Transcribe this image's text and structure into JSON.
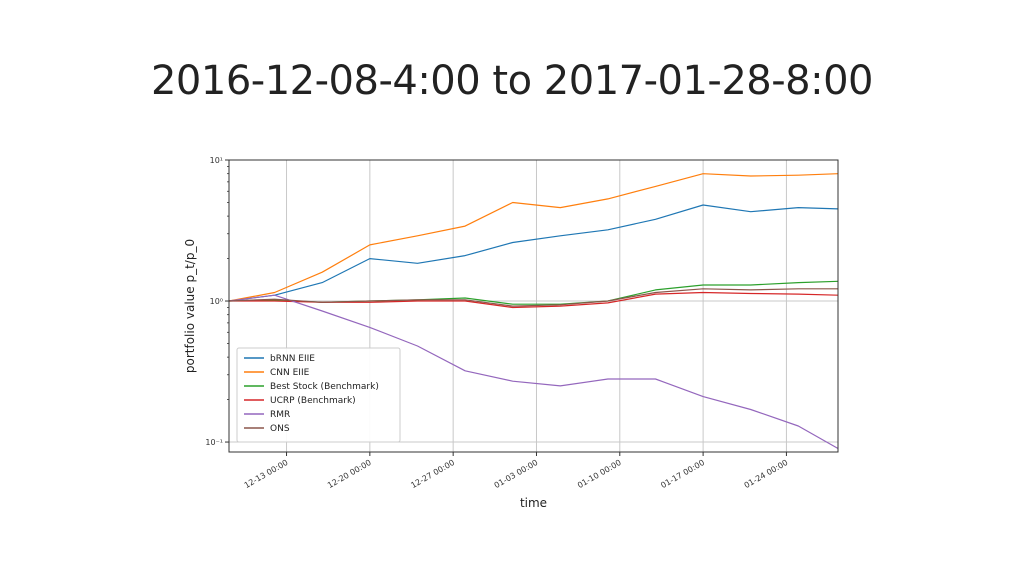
{
  "slide": {
    "title": "2016-12-08-4:00 to 2017-01-28-8:00"
  },
  "chart_data": {
    "type": "line",
    "title": "",
    "xlabel": "time",
    "ylabel": "portfolio value p_t/p_0",
    "yscale": "log",
    "ylim": [
      0.085,
      10
    ],
    "xlim": [
      "2016-12-08 04:00",
      "2017-01-28 08:00"
    ],
    "grid": true,
    "legend_position": "lower left",
    "y_ticks": [
      {
        "value": 0.1,
        "label": "10⁻¹"
      },
      {
        "value": 1,
        "label": "10⁰"
      },
      {
        "value": 10,
        "label": "10¹"
      }
    ],
    "x_ticks": [
      {
        "value": "2016-12-13 00:00",
        "label": "12-13 00:00"
      },
      {
        "value": "2016-12-20 00:00",
        "label": "12-20 00:00"
      },
      {
        "value": "2016-12-27 00:00",
        "label": "12-27 00:00"
      },
      {
        "value": "2017-01-03 00:00",
        "label": "01-03 00:00"
      },
      {
        "value": "2017-01-10 00:00",
        "label": "01-10 00:00"
      },
      {
        "value": "2017-01-17 00:00",
        "label": "01-17 00:00"
      },
      {
        "value": "2017-01-24 00:00",
        "label": "01-24 00:00"
      }
    ],
    "series": [
      {
        "name": "bRNN EIIE",
        "color": "#1f77b4",
        "x": [
          "2016-12-08 04:00",
          "2016-12-12 00:00",
          "2016-12-16 00:00",
          "2016-12-20 00:00",
          "2016-12-24 00:00",
          "2016-12-28 00:00",
          "2017-01-01 00:00",
          "2017-01-05 00:00",
          "2017-01-09 00:00",
          "2017-01-13 00:00",
          "2017-01-17 00:00",
          "2017-01-21 00:00",
          "2017-01-25 00:00",
          "2017-01-28 08:00"
        ],
        "values": [
          1.0,
          1.1,
          1.35,
          2.0,
          1.85,
          2.1,
          2.6,
          2.9,
          3.2,
          3.8,
          4.8,
          4.3,
          4.6,
          4.5
        ]
      },
      {
        "name": "CNN EIIE",
        "color": "#ff7f0e",
        "x": [
          "2016-12-08 04:00",
          "2016-12-12 00:00",
          "2016-12-16 00:00",
          "2016-12-20 00:00",
          "2016-12-24 00:00",
          "2016-12-28 00:00",
          "2017-01-01 00:00",
          "2017-01-05 00:00",
          "2017-01-09 00:00",
          "2017-01-13 00:00",
          "2017-01-17 00:00",
          "2017-01-21 00:00",
          "2017-01-25 00:00",
          "2017-01-28 08:00"
        ],
        "values": [
          1.0,
          1.15,
          1.6,
          2.5,
          2.9,
          3.4,
          5.0,
          4.6,
          5.3,
          6.5,
          8.0,
          7.7,
          7.8,
          8.0
        ]
      },
      {
        "name": "Best Stock (Benchmark)",
        "color": "#2ca02c",
        "x": [
          "2016-12-08 04:00",
          "2016-12-12 00:00",
          "2016-12-16 00:00",
          "2016-12-20 00:00",
          "2016-12-24 00:00",
          "2016-12-28 00:00",
          "2017-01-01 00:00",
          "2017-01-05 00:00",
          "2017-01-09 00:00",
          "2017-01-13 00:00",
          "2017-01-17 00:00",
          "2017-01-21 00:00",
          "2017-01-25 00:00",
          "2017-01-28 08:00"
        ],
        "values": [
          1.0,
          1.02,
          0.98,
          1.0,
          1.02,
          1.05,
          0.95,
          0.95,
          1.0,
          1.2,
          1.3,
          1.3,
          1.35,
          1.38
        ]
      },
      {
        "name": "UCRP (Benchmark)",
        "color": "#d62728",
        "x": [
          "2016-12-08 04:00",
          "2016-12-12 00:00",
          "2016-12-16 00:00",
          "2016-12-20 00:00",
          "2016-12-24 00:00",
          "2016-12-28 00:00",
          "2017-01-01 00:00",
          "2017-01-05 00:00",
          "2017-01-09 00:00",
          "2017-01-13 00:00",
          "2017-01-17 00:00",
          "2017-01-21 00:00",
          "2017-01-25 00:00",
          "2017-01-28 08:00"
        ],
        "values": [
          1.0,
          1.0,
          0.98,
          0.98,
          1.0,
          1.0,
          0.9,
          0.92,
          0.97,
          1.12,
          1.15,
          1.13,
          1.12,
          1.1
        ]
      },
      {
        "name": "RMR",
        "color": "#9467bd",
        "x": [
          "2016-12-08 04:00",
          "2016-12-12 00:00",
          "2016-12-16 00:00",
          "2016-12-20 00:00",
          "2016-12-24 00:00",
          "2016-12-28 00:00",
          "2017-01-01 00:00",
          "2017-01-05 00:00",
          "2017-01-09 00:00",
          "2017-01-13 00:00",
          "2017-01-17 00:00",
          "2017-01-21 00:00",
          "2017-01-25 00:00",
          "2017-01-28 08:00"
        ],
        "values": [
          1.0,
          1.1,
          0.85,
          0.65,
          0.48,
          0.32,
          0.27,
          0.25,
          0.28,
          0.28,
          0.21,
          0.17,
          0.13,
          0.09
        ]
      },
      {
        "name": "ONS",
        "color": "#8c564b",
        "x": [
          "2016-12-08 04:00",
          "2016-12-12 00:00",
          "2016-12-16 00:00",
          "2016-12-20 00:00",
          "2016-12-24 00:00",
          "2016-12-28 00:00",
          "2017-01-01 00:00",
          "2017-01-05 00:00",
          "2017-01-09 00:00",
          "2017-01-13 00:00",
          "2017-01-17 00:00",
          "2017-01-21 00:00",
          "2017-01-25 00:00",
          "2017-01-28 08:00"
        ],
        "values": [
          1.0,
          1.03,
          0.98,
          1.0,
          1.02,
          1.02,
          0.92,
          0.94,
          1.0,
          1.15,
          1.22,
          1.2,
          1.22,
          1.22
        ]
      }
    ]
  }
}
